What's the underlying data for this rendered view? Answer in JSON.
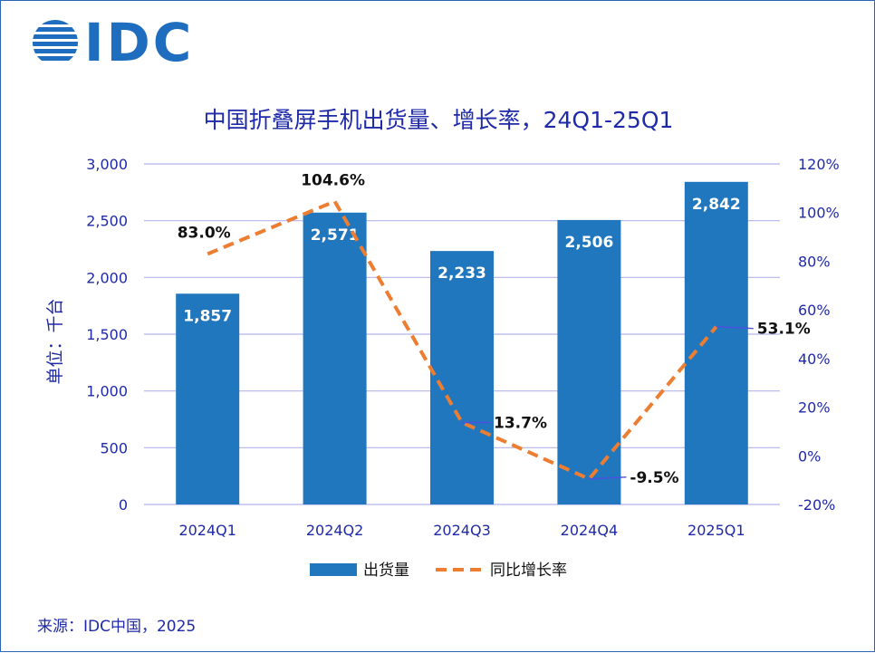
{
  "logo": {
    "text": "IDC"
  },
  "source": "来源：IDC中国，2025",
  "chart_data": {
    "type": "bar",
    "title": "中国折叠屏手机出货量、增长率，24Q1-25Q1",
    "categories": [
      "2024Q1",
      "2024Q2",
      "2024Q3",
      "2024Q4",
      "2025Q1"
    ],
    "ylabel": "单位：千台",
    "ylim": [
      0,
      3000
    ],
    "yticks": [
      "0",
      "500",
      "1,000",
      "1,500",
      "2,000",
      "2,500",
      "3,000"
    ],
    "y2lim": [
      -20,
      120
    ],
    "y2ticks": [
      "-20%",
      "0%",
      "20%",
      "40%",
      "60%",
      "80%",
      "100%",
      "120%"
    ],
    "grid": true,
    "legend_position": "bottom",
    "series": [
      {
        "name": "出货量",
        "type": "bar",
        "axis": "left",
        "values": [
          1857,
          2571,
          2233,
          2506,
          2842
        ],
        "labels": [
          "1,857",
          "2,571",
          "2,233",
          "2,506",
          "2,842"
        ],
        "color": "#2177be"
      },
      {
        "name": "同比增长率",
        "type": "line",
        "axis": "right",
        "style": "dashed",
        "values": [
          83.0,
          104.6,
          13.7,
          -9.5,
          53.1
        ],
        "labels": [
          "83.0%",
          "104.6%",
          "13.7%",
          "-9.5%",
          "53.1%"
        ],
        "color": "#ed7d31"
      }
    ],
    "colors": {
      "axis_text": "#1f2aa8",
      "grid": "#b4b4ea",
      "leader": "#4f4fe0"
    }
  }
}
